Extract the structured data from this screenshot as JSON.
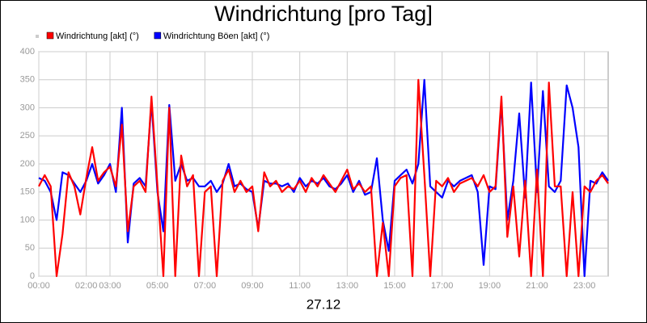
{
  "chart_data": {
    "type": "line",
    "title": "Windrichtung [pro Tag]",
    "xlabel": "27.12",
    "x": [
      0,
      0.25,
      0.5,
      0.75,
      1,
      1.25,
      1.5,
      1.75,
      2,
      2.25,
      2.5,
      2.75,
      3,
      3.25,
      3.5,
      3.75,
      4,
      4.25,
      4.5,
      4.75,
      5,
      5.25,
      5.5,
      5.75,
      6,
      6.25,
      6.5,
      6.75,
      7,
      7.25,
      7.5,
      7.75,
      8,
      8.25,
      8.5,
      8.75,
      9,
      9.25,
      9.5,
      9.75,
      10,
      10.25,
      10.5,
      10.75,
      11,
      11.25,
      11.5,
      11.75,
      12,
      12.25,
      12.5,
      12.75,
      13,
      13.25,
      13.5,
      13.75,
      14,
      14.25,
      14.5,
      14.75,
      15,
      15.25,
      15.5,
      15.75,
      16,
      16.25,
      16.5,
      16.75,
      17,
      17.25,
      17.5,
      17.75,
      18,
      18.25,
      18.5,
      18.75,
      19,
      19.25,
      19.5,
      19.75,
      20,
      20.25,
      20.5,
      20.75,
      21,
      21.25,
      21.5,
      21.75,
      22,
      22.25,
      22.5,
      22.75,
      23,
      23.25,
      23.5,
      23.75,
      24
    ],
    "series": [
      {
        "name": "Windrichtung Böen [akt] (°)",
        "color": "#0000ff",
        "values": [
          175,
          170,
          150,
          100,
          185,
          180,
          165,
          150,
          170,
          200,
          165,
          180,
          200,
          150,
          300,
          60,
          165,
          175,
          160,
          310,
          150,
          80,
          305,
          170,
          200,
          170,
          175,
          160,
          160,
          170,
          150,
          165,
          200,
          160,
          165,
          155,
          150,
          85,
          170,
          165,
          165,
          160,
          165,
          150,
          175,
          160,
          170,
          165,
          175,
          160,
          155,
          165,
          180,
          150,
          170,
          145,
          150,
          210,
          100,
          45,
          170,
          180,
          190,
          165,
          200,
          350,
          160,
          150,
          140,
          170,
          160,
          170,
          175,
          180,
          150,
          20,
          160,
          155,
          310,
          100,
          170,
          290,
          140,
          345,
          150,
          330,
          160,
          150,
          170,
          340,
          300,
          230,
          0,
          170,
          165,
          185,
          170
        ]
      },
      {
        "name": "Windrichtung [akt] (°)",
        "color": "#ff0000",
        "values": [
          160,
          180,
          160,
          0,
          75,
          185,
          160,
          110,
          175,
          230,
          170,
          185,
          195,
          160,
          270,
          80,
          160,
          170,
          150,
          320,
          160,
          0,
          300,
          0,
          215,
          160,
          180,
          0,
          150,
          160,
          0,
          170,
          190,
          150,
          170,
          150,
          160,
          80,
          185,
          160,
          170,
          150,
          160,
          155,
          170,
          150,
          175,
          160,
          180,
          165,
          150,
          170,
          190,
          155,
          165,
          150,
          160,
          0,
          95,
          0,
          160,
          175,
          180,
          0,
          350,
          180,
          0,
          170,
          160,
          175,
          150,
          165,
          170,
          175,
          160,
          180,
          150,
          160,
          320,
          70,
          160,
          35,
          170,
          0,
          190,
          0,
          345,
          160,
          160,
          0,
          150,
          0,
          160,
          150,
          170,
          180,
          165
        ]
      }
    ],
    "legend_order": [
      1,
      0
    ],
    "xlim": [
      0,
      24
    ],
    "xticks": [
      {
        "value": 0,
        "label": "00:00"
      },
      {
        "value": 2,
        "label": "02:00"
      },
      {
        "value": 3,
        "label": "03:00"
      },
      {
        "value": 5,
        "label": "05:00"
      },
      {
        "value": 7,
        "label": "07:00"
      },
      {
        "value": 9,
        "label": "09:00"
      },
      {
        "value": 11,
        "label": "11:00"
      },
      {
        "value": 13,
        "label": "13:00"
      },
      {
        "value": 15,
        "label": "15:00"
      },
      {
        "value": 17,
        "label": "17:00"
      },
      {
        "value": 19,
        "label": "19:00"
      },
      {
        "value": 21,
        "label": "21:00"
      },
      {
        "value": 23,
        "label": "23:00"
      }
    ],
    "ylim": [
      0,
      400
    ],
    "yticks": [
      0,
      50,
      100,
      150,
      200,
      250,
      300,
      350,
      400
    ],
    "grid": true
  }
}
